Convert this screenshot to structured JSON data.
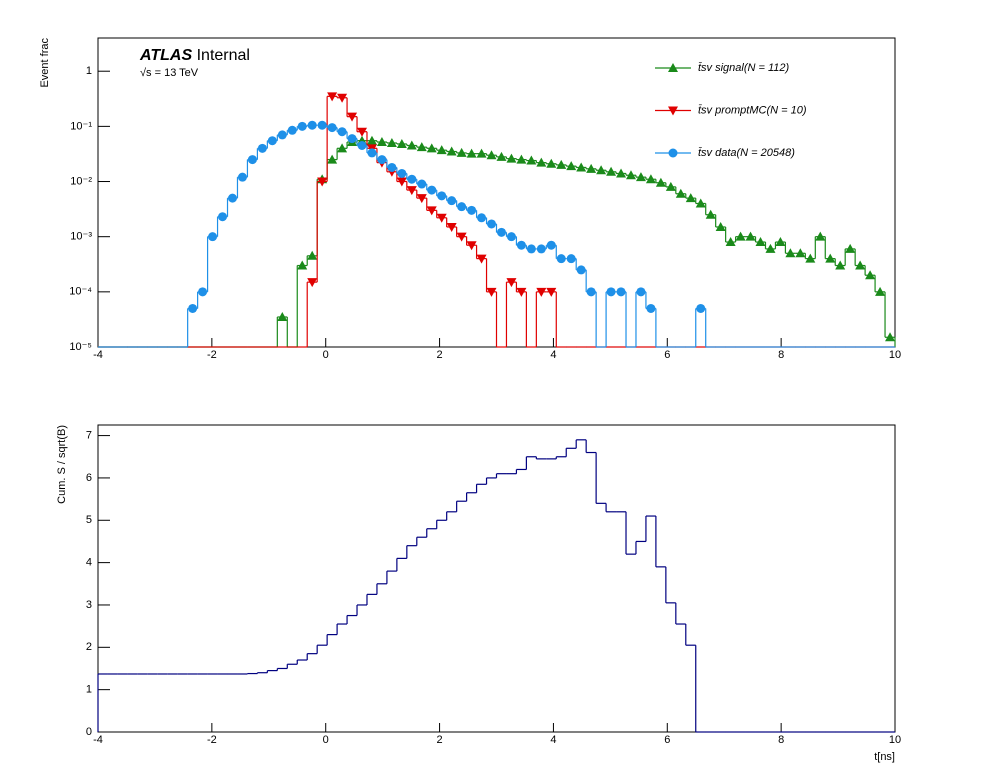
{
  "chart_data": [
    {
      "type": "histogram",
      "log_y": true,
      "ylabel": "Event frac",
      "atlas_label": "ATLAS",
      "atlas_status": "Internal",
      "energy": "√s = 13 TeV",
      "legend": "top-right",
      "xlim": [
        -4,
        10
      ],
      "xticks": [
        -4,
        -2,
        0,
        2,
        4,
        6,
        8,
        10
      ],
      "ylim": [
        1e-05,
        4
      ],
      "yticks": [
        {
          "value": 1e-05,
          "label": "10⁻⁵"
        },
        {
          "value": 0.0001,
          "label": "10⁻⁴"
        },
        {
          "value": 0.001,
          "label": "10⁻³"
        },
        {
          "value": 0.01,
          "label": "10⁻²"
        },
        {
          "value": 0.1,
          "label": "10⁻¹"
        },
        1
      ],
      "bins": [
        -4,
        -3.825,
        -3.65,
        -3.475,
        -3.3,
        -3.125,
        -2.95,
        -2.775,
        -2.6,
        -2.425,
        -2.25,
        -2.075,
        -1.9,
        -1.725,
        -1.55,
        -1.375,
        -1.2,
        -1.025,
        -0.85,
        -0.675,
        -0.5,
        -0.325,
        -0.15,
        0.025,
        0.2,
        0.375,
        0.55,
        0.725,
        0.9,
        1.075,
        1.25,
        1.425,
        1.6,
        1.775,
        1.95,
        2.125,
        2.3,
        2.475,
        2.65,
        2.825,
        3.0,
        3.175,
        3.35,
        3.525,
        3.7,
        3.875,
        4.05,
        4.225,
        4.4,
        4.575,
        4.75,
        4.925,
        5.1,
        5.275,
        5.45,
        5.625,
        5.8,
        5.975,
        6.15,
        6.325,
        6.5,
        6.675,
        6.85,
        7.025,
        7.2,
        7.375,
        7.55,
        7.725,
        7.9,
        8.075,
        8.25,
        8.425,
        8.6,
        8.775,
        8.95,
        9.125,
        9.3,
        9.475,
        9.65,
        9.825,
        10
      ],
      "series": [
        {
          "name": "t̄sv signal(N = 112)",
          "color": "#1a8a1a",
          "marker": "triangle-up",
          "values": [
            0,
            0,
            0,
            0,
            0,
            0,
            0,
            0,
            0,
            0,
            0,
            0,
            0,
            0,
            0,
            0,
            0,
            0,
            3.5e-05,
            0,
            0.0003,
            0.00045,
            0.011,
            0.025,
            0.04,
            0.052,
            0.055,
            0.055,
            0.052,
            0.05,
            0.048,
            0.045,
            0.042,
            0.04,
            0.037,
            0.035,
            0.033,
            0.032,
            0.032,
            0.03,
            0.028,
            0.026,
            0.025,
            0.024,
            0.022,
            0.021,
            0.02,
            0.019,
            0.018,
            0.017,
            0.016,
            0.015,
            0.014,
            0.013,
            0.012,
            0.011,
            0.0095,
            0.008,
            0.006,
            0.005,
            0.004,
            0.0025,
            0.0015,
            0.0008,
            0.001,
            0.001,
            0.0008,
            0.0006,
            0.0008,
            0.0005,
            0.0005,
            0.0004,
            0.001,
            0.0004,
            0.0003,
            0.0006,
            0.0003,
            0.0002,
            0.0001,
            1.5e-05
          ]
        },
        {
          "name": "t̄sv promptMC(N = 10)",
          "color": "#e00000",
          "marker": "triangle-down",
          "values": [
            0,
            0,
            0,
            0,
            0,
            0,
            0,
            0,
            0,
            0,
            0,
            0,
            0,
            0,
            0,
            0,
            0,
            0,
            0,
            0,
            0,
            0.00015,
            0.01,
            0.35,
            0.33,
            0.15,
            0.08,
            0.04,
            0.022,
            0.015,
            0.01,
            0.007,
            0.005,
            0.003,
            0.0022,
            0.0015,
            0.001,
            0.0007,
            0.0004,
            0.0001,
            0,
            0.00015,
            0.0001,
            0,
            0.0001,
            0.0001,
            0,
            0,
            0,
            0,
            0,
            0,
            0,
            0,
            0,
            0,
            0,
            0,
            0,
            0,
            0,
            0,
            0,
            0,
            0,
            0,
            0,
            0,
            0,
            0,
            0,
            0,
            0,
            0,
            0,
            0,
            0,
            0,
            0,
            0
          ]
        },
        {
          "name": "t̄sv data(N = 20548)",
          "color": "#1e90e8",
          "marker": "circle",
          "values": [
            0,
            0,
            0,
            0,
            0,
            0,
            0,
            0,
            0,
            5e-05,
            0.0001,
            0.001,
            0.0023,
            0.005,
            0.012,
            0.025,
            0.04,
            0.055,
            0.07,
            0.085,
            0.1,
            0.105,
            0.105,
            0.095,
            0.08,
            0.06,
            0.045,
            0.033,
            0.025,
            0.018,
            0.014,
            0.011,
            0.009,
            0.007,
            0.0055,
            0.0045,
            0.0035,
            0.003,
            0.0022,
            0.0017,
            0.0012,
            0.001,
            0.0007,
            0.0006,
            0.0006,
            0.0007,
            0.0004,
            0.0004,
            0.00025,
            0.0001,
            0,
            0.0001,
            0.0001,
            0,
            0.0001,
            5e-05,
            0,
            0,
            0,
            0,
            5e-05,
            0,
            0,
            0,
            0,
            0,
            0,
            0,
            0,
            0,
            0,
            0,
            0,
            0,
            0,
            0,
            0,
            0,
            0,
            0
          ]
        }
      ]
    },
    {
      "type": "histogram",
      "log_y": false,
      "ylabel": "Cum. S / sqrt(B)",
      "xlabel": "t[ns]",
      "xlim": [
        -4,
        10
      ],
      "xticks": [
        -4,
        -2,
        0,
        2,
        4,
        6,
        8,
        10
      ],
      "ylim": [
        0,
        7.25
      ],
      "yticks": [
        0,
        1,
        2,
        3,
        4,
        5,
        6,
        7
      ],
      "bins": [
        -4,
        -3.825,
        -3.65,
        -3.475,
        -3.3,
        -3.125,
        -2.95,
        -2.775,
        -2.6,
        -2.425,
        -2.25,
        -2.075,
        -1.9,
        -1.725,
        -1.55,
        -1.375,
        -1.2,
        -1.025,
        -0.85,
        -0.675,
        -0.5,
        -0.325,
        -0.15,
        0.025,
        0.2,
        0.375,
        0.55,
        0.725,
        0.9,
        1.075,
        1.25,
        1.425,
        1.6,
        1.775,
        1.95,
        2.125,
        2.3,
        2.475,
        2.65,
        2.825,
        3.0,
        3.175,
        3.35,
        3.525,
        3.7,
        3.875,
        4.05,
        4.225,
        4.4,
        4.575,
        4.75,
        4.925,
        5.1,
        5.275,
        5.45,
        5.625,
        5.8,
        5.975,
        6.15,
        6.325,
        6.5,
        6.675,
        6.85,
        7.025,
        7.2,
        7.375,
        7.55,
        7.725,
        7.9,
        8.075,
        8.25,
        8.425,
        8.6,
        8.775,
        8.95,
        9.125,
        9.3,
        9.475,
        9.65,
        9.825,
        10
      ],
      "series": [
        {
          "color": "#000080",
          "marker": "none",
          "values": [
            1.37,
            1.37,
            1.37,
            1.37,
            1.37,
            1.37,
            1.37,
            1.37,
            1.37,
            1.37,
            1.37,
            1.37,
            1.37,
            1.37,
            1.37,
            1.38,
            1.4,
            1.45,
            1.5,
            1.6,
            1.7,
            1.85,
            2.05,
            2.3,
            2.55,
            2.75,
            3.0,
            3.25,
            3.5,
            3.8,
            4.1,
            4.4,
            4.6,
            4.8,
            5.0,
            5.2,
            5.45,
            5.65,
            5.85,
            6.0,
            6.1,
            6.1,
            6.2,
            6.5,
            6.45,
            6.45,
            6.5,
            6.7,
            6.9,
            6.6,
            5.4,
            5.2,
            5.2,
            4.2,
            4.5,
            5.1,
            3.9,
            3.05,
            2.55,
            2.05,
            0,
            0,
            0,
            0,
            0,
            0,
            0,
            0,
            0,
            0,
            0,
            0,
            0,
            0,
            0,
            0,
            0,
            0,
            0,
            0
          ]
        }
      ]
    }
  ]
}
